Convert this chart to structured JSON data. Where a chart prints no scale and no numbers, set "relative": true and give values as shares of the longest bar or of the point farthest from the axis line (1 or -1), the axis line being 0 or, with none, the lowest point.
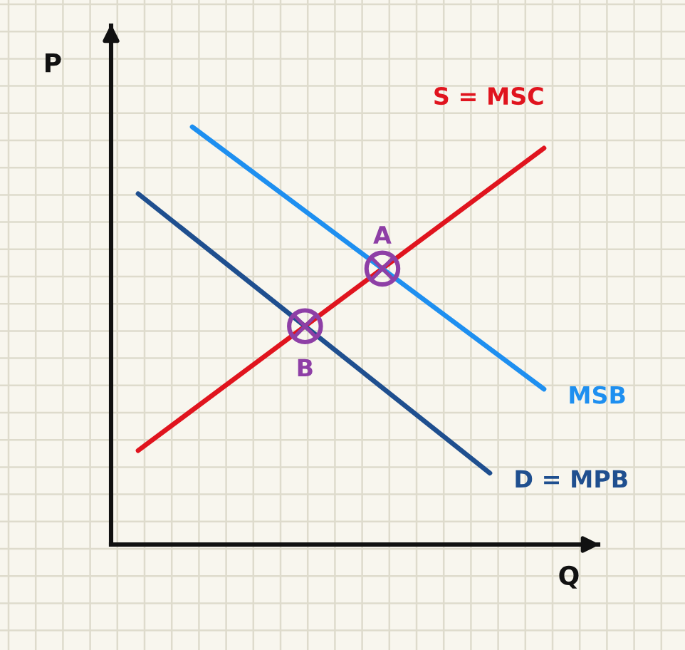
{
  "chart_data": {
    "type": "line",
    "relative": true,
    "xlabel": "Q",
    "ylabel": "P",
    "grid": true,
    "legend": false,
    "marker": "none",
    "line_style": "solid",
    "categories": [
      null,
      null,
      null,
      null,
      null,
      null,
      null,
      null,
      null,
      null,
      null,
      null,
      null,
      null,
      null,
      null,
      null
    ],
    "series": [
      {
        "name": "S = MSC",
        "color": "#e0141e",
        "values": [
          0.225,
          null,
          null,
          null,
          null,
          null,
          null,
          null,
          null,
          null,
          null,
          null,
          null,
          null,
          null,
          0.949,
          null
        ]
      },
      {
        "name": "MSB",
        "color": "#1e8ff0",
        "values": [
          null,
          null,
          1,
          null,
          null,
          null,
          null,
          null,
          null,
          null,
          null,
          null,
          null,
          null,
          null,
          0.372,
          null
        ]
      },
      {
        "name": "D = MPB",
        "color": "#1f4f8f",
        "values": [
          0.84,
          null,
          null,
          null,
          null,
          null,
          null,
          null,
          null,
          null,
          null,
          null,
          null,
          0.171,
          null,
          null,
          null
        ]
      }
    ],
    "annotations": [
      "A",
      "B"
    ]
  }
}
